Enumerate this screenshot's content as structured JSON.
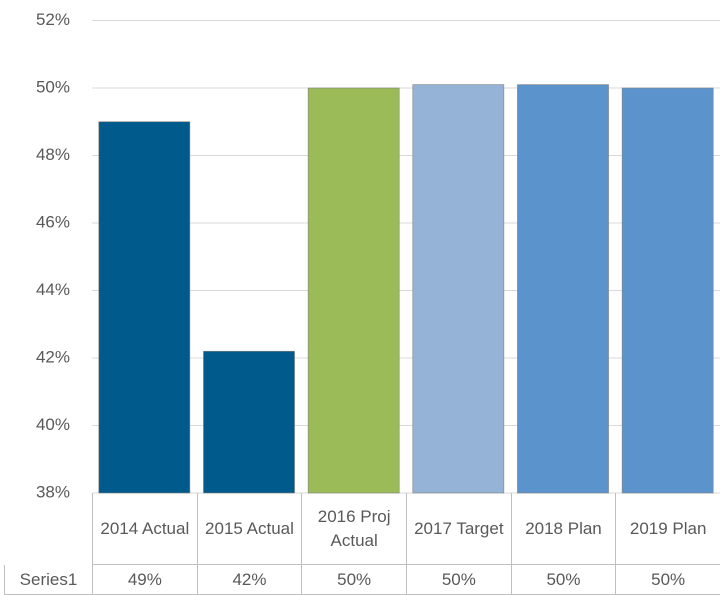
{
  "chart_data": {
    "type": "bar",
    "categories": [
      "2014 Actual",
      "2015 Actual",
      "2016 Proj Actual",
      "2017 Target",
      "2018 Plan",
      "2019 Plan"
    ],
    "series": [
      {
        "name": "Series1",
        "colors": [
          "#005a8c",
          "#005a8c",
          "#9bbb59",
          "#95b3d7",
          "#5b93cc",
          "#5b93cc"
        ],
        "values": [
          49,
          42.2,
          50,
          50.1,
          50.1,
          50
        ],
        "value_labels": [
          "49%",
          "42%",
          "50%",
          "50%",
          "50%",
          "50%"
        ]
      }
    ],
    "ylim": [
      38,
      52
    ],
    "yticks": [
      {
        "value": 38,
        "label": "38%"
      },
      {
        "value": 40,
        "label": "40%"
      },
      {
        "value": 42,
        "label": "42%"
      },
      {
        "value": 44,
        "label": "44%"
      },
      {
        "value": 46,
        "label": "46%"
      },
      {
        "value": 48,
        "label": "48%"
      },
      {
        "value": 50,
        "label": "50%"
      },
      {
        "value": 52,
        "label": "52%"
      }
    ],
    "grid": true,
    "data_table": true
  }
}
